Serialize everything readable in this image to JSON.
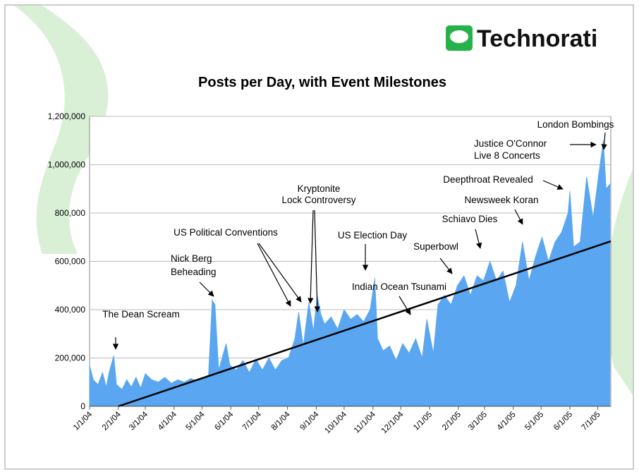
{
  "logo": "Technorati",
  "chart_data": {
    "type": "area",
    "title": "Posts per Day, with Event Milestones",
    "color": "#5aa6f0",
    "x": [
      "1/1/04",
      "1/5/04",
      "1/10/04",
      "1/15/04",
      "1/19/04",
      "1/22/04",
      "1/27/04",
      "1/30/04",
      "2/5/04",
      "2/10/04",
      "2/15/04",
      "2/20/04",
      "2/25/04",
      "3/1/04",
      "3/8/04",
      "3/15/04",
      "3/22/04",
      "3/29/04",
      "4/5/04",
      "4/12/04",
      "4/19/04",
      "4/26/04",
      "5/3/04",
      "5/8/04",
      "5/12/04",
      "5/15/04",
      "5/19/04",
      "5/27/04",
      "5/31/04",
      "6/7/04",
      "6/14/04",
      "6/21/04",
      "6/28/04",
      "7/5/04",
      "7/12/04",
      "7/19/04",
      "7/26/04",
      "8/2/04",
      "8/9/04",
      "8/13/04",
      "8/18/04",
      "8/24/04",
      "8/29/04",
      "9/2/04",
      "9/6/04",
      "9/10/04",
      "9/17/04",
      "9/24/04",
      "10/1/04",
      "10/8/04",
      "10/15/04",
      "10/22/04",
      "10/29/04",
      "11/3/04",
      "11/6/04",
      "11/12/04",
      "11/19/04",
      "11/26/04",
      "12/3/04",
      "12/10/04",
      "12/17/04",
      "12/24/04",
      "12/29/04",
      "1/5/05",
      "1/10/05",
      "1/17/05",
      "1/24/05",
      "1/31/05",
      "2/7/05",
      "2/14/05",
      "2/21/05",
      "2/28/05",
      "3/7/05",
      "3/14/05",
      "3/21/05",
      "3/28/05",
      "4/4/05",
      "4/11/05",
      "4/18/05",
      "4/25/05",
      "5/2/05",
      "5/9/05",
      "5/16/05",
      "5/23/05",
      "5/30/05",
      "6/1/05",
      "6/5/05",
      "6/12/05",
      "6/19/05",
      "6/26/05",
      "7/2/05",
      "7/7/05",
      "7/10/05",
      "7/14/05"
    ],
    "values": [
      170000,
      110000,
      90000,
      140000,
      80000,
      140000,
      210000,
      90000,
      70000,
      110000,
      80000,
      120000,
      75000,
      135000,
      110000,
      100000,
      120000,
      95000,
      110000,
      100000,
      115000,
      105000,
      115000,
      130000,
      440000,
      420000,
      150000,
      260000,
      170000,
      150000,
      190000,
      140000,
      195000,
      150000,
      200000,
      150000,
      190000,
      200000,
      280000,
      390000,
      250000,
      430000,
      310000,
      460000,
      380000,
      340000,
      370000,
      320000,
      400000,
      360000,
      380000,
      350000,
      400000,
      530000,
      280000,
      230000,
      250000,
      190000,
      260000,
      220000,
      280000,
      200000,
      360000,
      220000,
      420000,
      460000,
      420000,
      500000,
      540000,
      460000,
      540000,
      520000,
      600000,
      520000,
      560000,
      430000,
      500000,
      680000,
      520000,
      620000,
      700000,
      600000,
      680000,
      720000,
      800000,
      890000,
      660000,
      680000,
      950000,
      780000,
      960000,
      1100000,
      900000,
      920000
    ],
    "trend": {
      "x": [
        "2/1/04",
        "7/15/05"
      ],
      "values": [
        0,
        683000
      ],
      "color": "#000000"
    },
    "xlim": [
      "1/1/04",
      "7/15/05"
    ],
    "xticks": [
      "1/1/04",
      "2/1/04",
      "3/1/04",
      "4/1/04",
      "5/1/04",
      "6/1/04",
      "7/1/04",
      "8/1/04",
      "9/1/04",
      "10/1/04",
      "11/1/04",
      "12/1/04",
      "1/1/05",
      "2/1/05",
      "3/1/05",
      "4/1/05",
      "5/1/05",
      "6/1/05",
      "7/1/05"
    ],
    "ylim": [
      0,
      1200000
    ],
    "yticks": [
      0,
      {
        "value": 200000,
        "label": "200,000"
      },
      {
        "value": 400000,
        "label": "400,000"
      },
      {
        "value": 600000,
        "label": "600,000"
      },
      {
        "value": 800000,
        "label": "800,000"
      },
      {
        "value": 1000000,
        "label": "1,000,000"
      },
      {
        "value": 1200000,
        "label": "1,200,000"
      }
    ],
    "grid": true,
    "annotations": [
      [
        "The Dean Scream"
      ],
      [
        "Nick Berg",
        "Beheading"
      ],
      [
        "US Political Conventions"
      ],
      [
        "Kryptonite",
        "Lock Controversy"
      ],
      [
        "US Election Day"
      ],
      [
        "Indian Ocean Tsunami"
      ],
      [
        "Superbowl"
      ],
      [
        "Schiavo Dies"
      ],
      [
        "Newsweek Koran"
      ],
      [
        "Deepthroat Revealed"
      ],
      [
        "Justice O'Connor",
        "Live 8 Concerts"
      ],
      [
        "London Bombings"
      ]
    ]
  }
}
